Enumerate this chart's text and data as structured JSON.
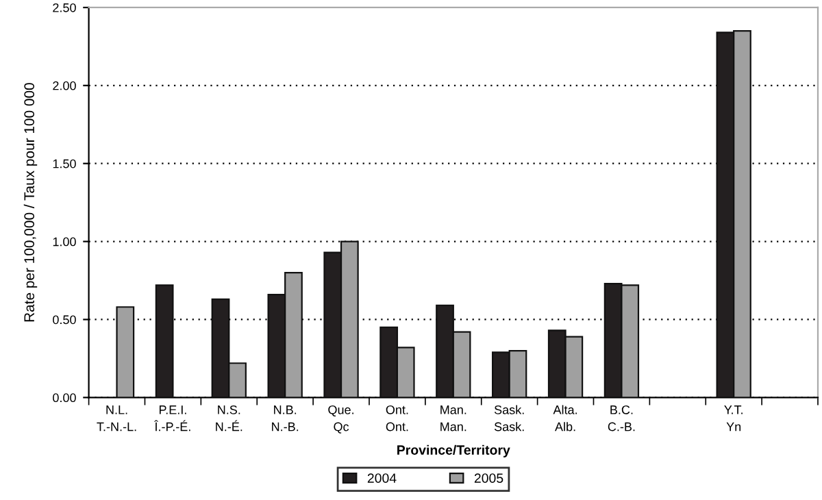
{
  "chart_data": {
    "type": "bar",
    "categories": [
      "N.L.\nT.-N.-L.",
      "P.E.I.\nÎ.-P.-É.",
      "N.S.\nN.-É.",
      "N.B.\nN.-B.",
      "Que.\nQc",
      "Ont.\nOnt.",
      "Man.\nMan.",
      "Sask.\nSask.",
      "Alta.\nAlb.",
      "B.C.\nC.-B.",
      null,
      "Y.T.\nYn",
      null
    ],
    "series": [
      {
        "name": "2004",
        "color": "#231f20",
        "values": [
          null,
          0.72,
          0.63,
          0.66,
          0.93,
          0.45,
          0.59,
          0.29,
          0.43,
          0.73,
          null,
          2.34,
          null
        ]
      },
      {
        "name": "2005",
        "color": "#a0a0a0",
        "values": [
          0.58,
          null,
          0.22,
          0.8,
          1.0,
          0.32,
          0.42,
          0.3,
          0.39,
          0.72,
          null,
          2.35,
          null
        ]
      }
    ],
    "xlabel": "Province/Territory",
    "ylabel": "Rate per 100,000 / Taux pour 100 000",
    "ylim": [
      0,
      2.5
    ],
    "yticks": [
      {
        "value": 0,
        "label": "0.00"
      },
      {
        "value": 0.5,
        "label": "0.50"
      },
      {
        "value": 1.0,
        "label": "1.00"
      },
      {
        "value": 1.5,
        "label": "1.50"
      },
      {
        "value": 2.0,
        "label": "2.00"
      },
      {
        "value": 2.5,
        "label": "2.50"
      }
    ],
    "grid": "y",
    "legend": "bottom"
  }
}
